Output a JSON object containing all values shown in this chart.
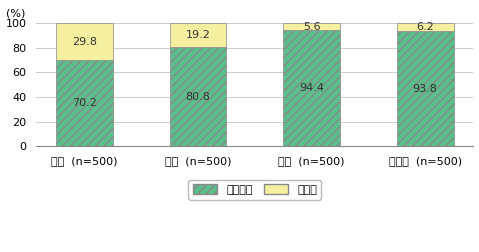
{
  "categories": [
    "日本  (n=500)",
    "米国  (n=500)",
    "英国  (n=500)",
    "ドイツ  (n=500)"
  ],
  "introduced": [
    70.2,
    80.8,
    94.4,
    93.8
  ],
  "not_introduced": [
    29.8,
    19.2,
    5.6,
    6.2
  ],
  "introduced_color": "#5abf8a",
  "not_introduced_color": "#f5f0a0",
  "hatch_pattern": "////",
  "ylabel": "(%)",
  "ylim": [
    0,
    100
  ],
  "yticks": [
    0,
    20,
    40,
    60,
    80,
    100
  ],
  "legend_labels": [
    "導入済み",
    "未導入"
  ],
  "bar_width": 0.5,
  "grid_color": "#cccccc",
  "text_color": "#333333",
  "fontsize_label": 8,
  "fontsize_bar": 8,
  "fontsize_ylabel": 8,
  "fontsize_legend": 8
}
